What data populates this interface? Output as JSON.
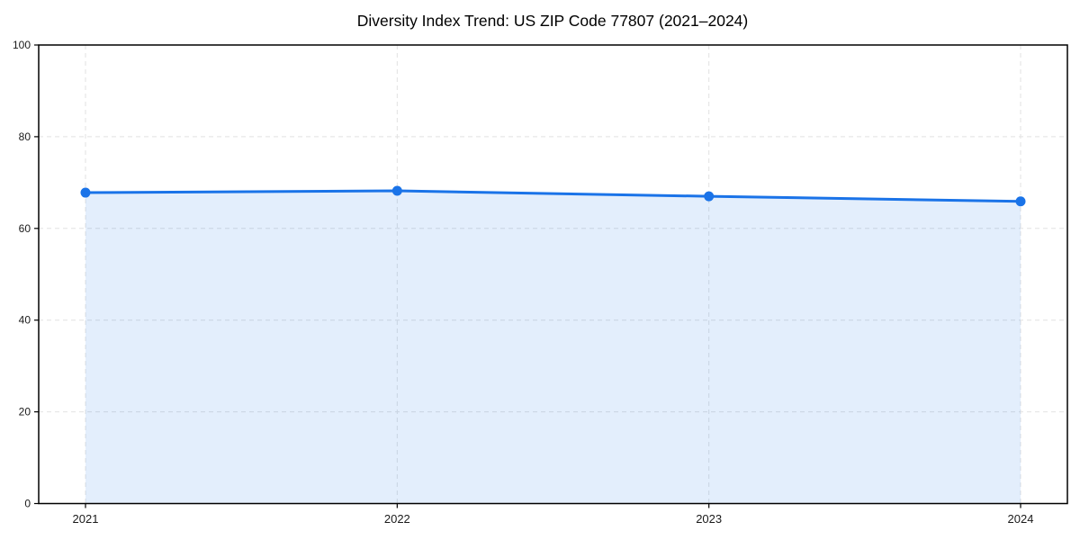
{
  "colors": {
    "line": "#1a73e8",
    "marker": "#1a73e8",
    "area_fill": "rgba(26,115,232,0.12)",
    "grid": "#e2e2e2",
    "spine": "#000000",
    "title_text": "#000000",
    "tick_text": "#1a1a1a"
  },
  "chart_data": {
    "type": "area",
    "title": "Diversity Index Trend: US ZIP Code 77807 (2021–2024)",
    "categories": [
      "2021",
      "2022",
      "2023",
      "2024"
    ],
    "values": [
      67.8,
      68.2,
      67.0,
      65.9
    ],
    "xlabel": "",
    "ylabel": "",
    "ylim": [
      0,
      100
    ],
    "yticks": [
      0,
      20,
      40,
      60,
      80,
      100
    ],
    "grid": true,
    "legend": false,
    "marker": "circle",
    "line_style": "solid",
    "fill_to_zero": true
  }
}
